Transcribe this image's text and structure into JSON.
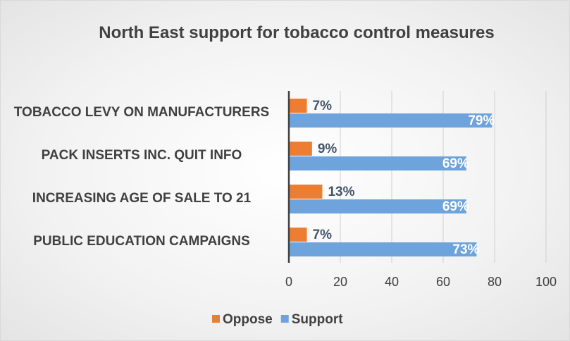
{
  "chart_data": {
    "type": "hbar",
    "title": "North East support for tobacco control measures",
    "categories": [
      "TOBACCO LEVY ON MANUFACTURERS",
      "PACK INSERTS INC. QUIT INFO",
      "INCREASING AGE OF SALE TO 21",
      "PUBLIC EDUCATION CAMPAIGNS"
    ],
    "series": [
      {
        "name": "Oppose",
        "color": "#ed7d31",
        "values": [
          7,
          9,
          13,
          7
        ],
        "value_labels": [
          "7%",
          "9%",
          "13%",
          "7%"
        ]
      },
      {
        "name": "Support",
        "color": "#6fa3dc",
        "values": [
          79,
          69,
          69,
          73
        ],
        "value_labels": [
          "79%",
          "69%",
          "69%",
          "73%"
        ]
      }
    ],
    "xlim": [
      0,
      100
    ],
    "xticks": [
      0,
      20,
      40,
      60,
      80,
      100
    ],
    "grid": true,
    "legend": "bottom"
  }
}
